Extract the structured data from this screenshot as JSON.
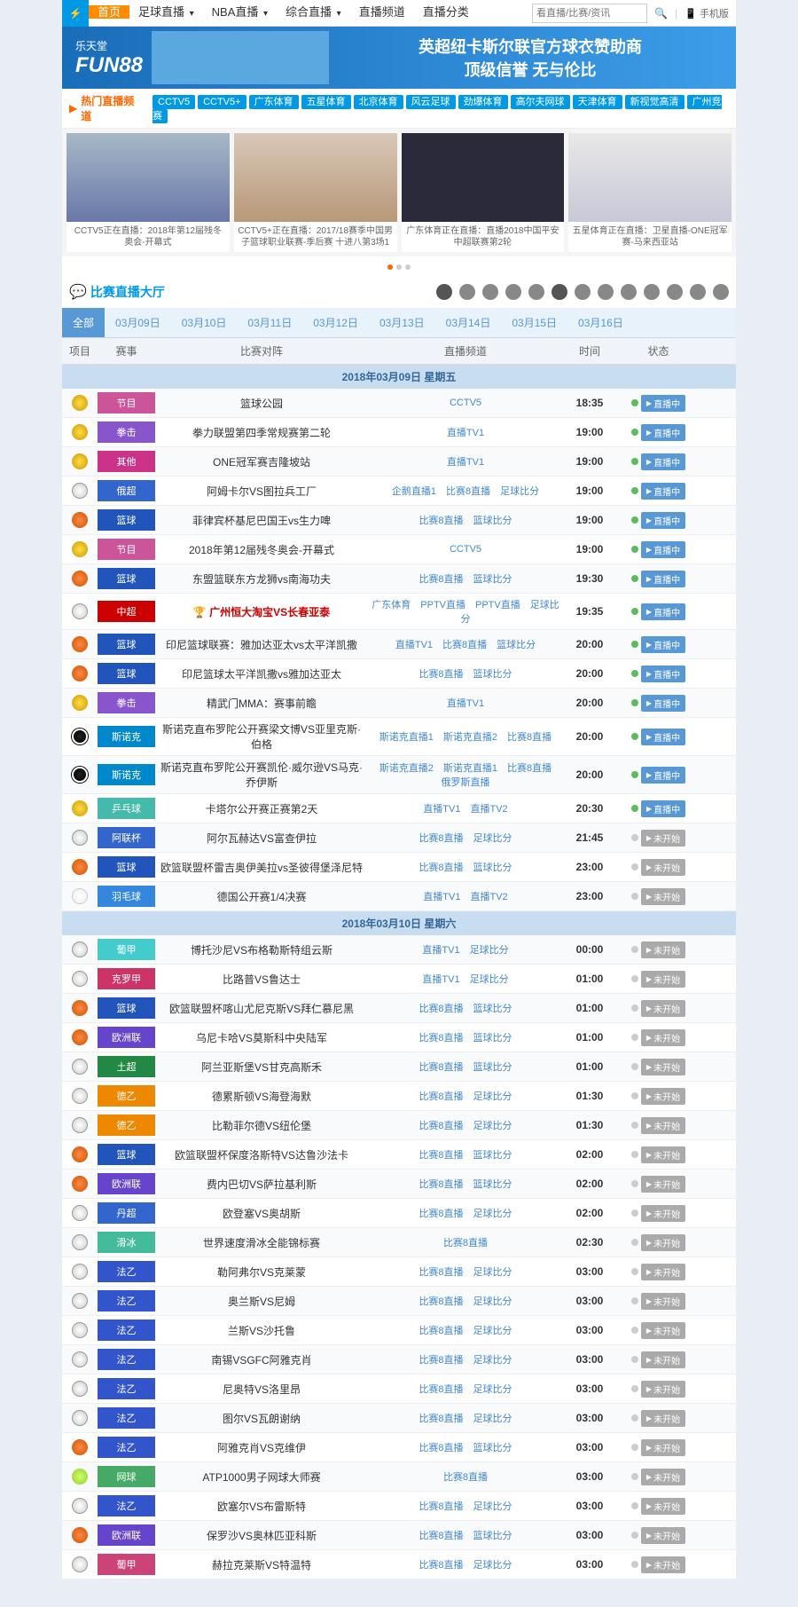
{
  "nav": {
    "items": [
      "首页",
      "足球直播",
      "NBA直播",
      "综合直播",
      "直播频道",
      "直播分类"
    ],
    "search_placeholder": "看直播/比赛/资讯",
    "mobile": "手机版"
  },
  "banner": {
    "brand_cn": "乐天堂",
    "brand": "FUN88",
    "line1": "英超纽卡斯尔联官方球衣赞助商",
    "line2": "顶级信誉 无与伦比"
  },
  "hotchan": {
    "label": "热门直播频道",
    "tags": [
      "CCTV5",
      "CCTV5+",
      "广东体育",
      "五星体育",
      "北京体育",
      "风云足球",
      "劲爆体育",
      "高尔夫网球",
      "天津体育",
      "新视觉高清",
      "广州竞赛"
    ]
  },
  "videos": [
    {
      "cap": "CCTV5正在直播：2018年第12届残冬奥会-开幕式"
    },
    {
      "cap": "CCTV5+正在直播：2017/18赛季中国男子篮球职业联赛-季后赛 十进八第3场1"
    },
    {
      "cap": "广东体育正在直播：直播2018中国平安中超联赛第2轮"
    },
    {
      "cap": "五星体育正在直播：卫星直播-ONE冠军赛-马来西亚站"
    }
  ],
  "hall": {
    "title": "比赛直播大厅"
  },
  "dates": [
    "全部",
    "03月09日",
    "03月10日",
    "03月11日",
    "03月12日",
    "03月13日",
    "03月14日",
    "03月15日",
    "03月16日"
  ],
  "thead": {
    "c1": "项目",
    "c2": "赛事",
    "c3": "比赛对阵",
    "c4": "直播频道",
    "c5": "时间",
    "c6": "状态"
  },
  "groups": [
    {
      "date": "2018年03月09日 星期五",
      "rows": [
        {
          "icon": "medal",
          "lg": "节目",
          "lgc": "#cc5599",
          "match": "篮球公园",
          "stream": "CCTV5",
          "time": "18:35",
          "live": true,
          "btn": "直播中"
        },
        {
          "icon": "medal",
          "lg": "拳击",
          "lgc": "#8855cc",
          "match": "拳力联盟第四季常规赛第二轮",
          "stream": "直播TV1",
          "time": "19:00",
          "live": true,
          "btn": "直播中"
        },
        {
          "icon": "medal",
          "lg": "其他",
          "lgc": "#cc3388",
          "match": "ONE冠军赛吉隆坡站",
          "stream": "直播TV1",
          "time": "19:00",
          "live": true,
          "btn": "直播中"
        },
        {
          "icon": "soccer",
          "lg": "俄超",
          "lgc": "#3366cc",
          "match": "阿姆卡尔VS图拉兵工厂",
          "stream": "企鹅直播1　比赛8直播　足球比分",
          "time": "19:00",
          "live": true,
          "btn": "直播中"
        },
        {
          "icon": "basket",
          "lg": "篮球",
          "lgc": "#2255bb",
          "match": "菲律宾杯基尼巴国王vs生力啤",
          "stream": "比赛8直播　篮球比分",
          "time": "19:00",
          "live": true,
          "btn": "直播中"
        },
        {
          "icon": "medal",
          "lg": "节目",
          "lgc": "#cc5599",
          "match": "2018年第12届残冬奥会-开幕式",
          "stream": "CCTV5",
          "time": "19:00",
          "live": true,
          "btn": "直播中"
        },
        {
          "icon": "basket",
          "lg": "篮球",
          "lgc": "#2255bb",
          "match": "东盟篮联东方龙狮vs南海功夫",
          "stream": "比赛8直播　篮球比分",
          "time": "19:30",
          "live": true,
          "btn": "直播中"
        },
        {
          "icon": "soccer",
          "lg": "中超",
          "lgc": "#cc0000",
          "match": "广州恒大淘宝VS长春亚泰",
          "hot": true,
          "stream": "广东体育　PPTV直播　PPTV直播　足球比分",
          "time": "19:35",
          "live": true,
          "btn": "直播中"
        },
        {
          "icon": "basket",
          "lg": "篮球",
          "lgc": "#2255bb",
          "match": "印尼篮球联赛：雅加达亚太vs太平洋凯撒",
          "stream": "直播TV1　比赛8直播　篮球比分",
          "time": "20:00",
          "live": true,
          "btn": "直播中"
        },
        {
          "icon": "basket",
          "lg": "篮球",
          "lgc": "#2255bb",
          "match": "印尼篮球太平洋凯撒vs雅加达亚太",
          "stream": "比赛8直播　篮球比分",
          "time": "20:00",
          "live": true,
          "btn": "直播中"
        },
        {
          "icon": "medal",
          "lg": "拳击",
          "lgc": "#8855cc",
          "match": "精武门MMA：赛事前瞻",
          "stream": "直播TV1",
          "time": "20:00",
          "live": true,
          "btn": "直播中"
        },
        {
          "icon": "snooker",
          "lg": "斯诺克",
          "lgc": "#0088cc",
          "match": "斯诺克直布罗陀公开赛梁文博VS亚里克斯·伯格",
          "stream": "斯诺克直播1　斯诺克直播2　比赛8直播",
          "time": "20:00",
          "live": true,
          "btn": "直播中"
        },
        {
          "icon": "snooker",
          "lg": "斯诺克",
          "lgc": "#0088cc",
          "match": "斯诺克直布罗陀公开赛凯伦·威尔逊VS马克·乔伊斯",
          "stream": "斯诺克直播2　斯诺克直播1　比赛8直播　俄罗斯直播",
          "time": "20:00",
          "live": true,
          "btn": "直播中"
        },
        {
          "icon": "medal",
          "lg": "乒乓球",
          "lgc": "#44bbaa",
          "match": "卡塔尔公开赛正赛第2天",
          "stream": "直播TV1　直播TV2",
          "time": "20:30",
          "live": true,
          "btn": "直播中"
        },
        {
          "icon": "soccer",
          "lg": "阿联杯",
          "lgc": "#3366cc",
          "match": "阿尔瓦赫达VS富查伊拉",
          "stream": "比赛8直播　足球比分",
          "time": "21:45",
          "live": false,
          "btn": "未开始"
        },
        {
          "icon": "basket",
          "lg": "篮球",
          "lgc": "#2255bb",
          "match": "欧篮联盟杯雷吉奥伊美拉vs圣彼得堡泽尼特",
          "stream": "比赛8直播　篮球比分",
          "time": "23:00",
          "live": false,
          "btn": "未开始"
        },
        {
          "icon": "badmin",
          "lg": "羽毛球",
          "lgc": "#3388dd",
          "match": "德国公开赛1/4决赛",
          "stream": "直播TV1　直播TV2",
          "time": "23:00",
          "live": false,
          "btn": "未开始"
        }
      ]
    },
    {
      "date": "2018年03月10日 星期六",
      "rows": [
        {
          "icon": "soccer",
          "lg": "葡甲",
          "lgc": "#44cccc",
          "match": "博托沙尼VS布格勒斯特组云斯",
          "stream": "直播TV1　足球比分",
          "time": "00:00",
          "live": false,
          "btn": "未开始"
        },
        {
          "icon": "soccer",
          "lg": "克罗甲",
          "lgc": "#cc3366",
          "match": "比路普VS鲁达士",
          "stream": "直播TV1　足球比分",
          "time": "01:00",
          "live": false,
          "btn": "未开始"
        },
        {
          "icon": "basket",
          "lg": "篮球",
          "lgc": "#2255bb",
          "match": "欧篮联盟杯喀山尤尼克斯VS拜仁慕尼黑",
          "stream": "比赛8直播　篮球比分",
          "time": "01:00",
          "live": false,
          "btn": "未开始"
        },
        {
          "icon": "basket",
          "lg": "欧洲联",
          "lgc": "#6644cc",
          "match": "乌尼卡哈VS莫斯科中央陆军",
          "stream": "比赛8直播　篮球比分",
          "time": "01:00",
          "live": false,
          "btn": "未开始"
        },
        {
          "icon": "soccer",
          "lg": "土超",
          "lgc": "#228844",
          "match": "阿兰亚斯堡VS甘克高斯禾",
          "stream": "比赛8直播　篮球比分",
          "time": "01:00",
          "live": false,
          "btn": "未开始"
        },
        {
          "icon": "soccer",
          "lg": "德乙",
          "lgc": "#ee8800",
          "match": "德累斯顿VS海登海默",
          "stream": "比赛8直播　足球比分",
          "time": "01:30",
          "live": false,
          "btn": "未开始"
        },
        {
          "icon": "soccer",
          "lg": "德乙",
          "lgc": "#ee8800",
          "match": "比勒菲尔德VS纽伦堡",
          "stream": "比赛8直播　足球比分",
          "time": "01:30",
          "live": false,
          "btn": "未开始"
        },
        {
          "icon": "basket",
          "lg": "篮球",
          "lgc": "#2255bb",
          "match": "欧篮联盟杯保度洛斯特VS达鲁沙法卡",
          "stream": "比赛8直播　篮球比分",
          "time": "02:00",
          "live": false,
          "btn": "未开始"
        },
        {
          "icon": "basket",
          "lg": "欧洲联",
          "lgc": "#6644cc",
          "match": "费内巴切VS萨拉基利斯",
          "stream": "比赛8直播　篮球比分",
          "time": "02:00",
          "live": false,
          "btn": "未开始"
        },
        {
          "icon": "soccer",
          "lg": "丹超",
          "lgc": "#3366cc",
          "match": "欧登塞VS奥胡斯",
          "stream": "比赛8直播　足球比分",
          "time": "02:00",
          "live": false,
          "btn": "未开始"
        },
        {
          "icon": "soccer",
          "lg": "滑冰",
          "lgc": "#44bb99",
          "match": "世界速度滑冰全能锦标赛",
          "stream": "比赛8直播",
          "time": "02:30",
          "live": false,
          "btn": "未开始"
        },
        {
          "icon": "soccer",
          "lg": "法乙",
          "lgc": "#3355cc",
          "match": "勒阿弗尔VS克莱蒙",
          "stream": "比赛8直播　足球比分",
          "time": "03:00",
          "live": false,
          "btn": "未开始"
        },
        {
          "icon": "soccer",
          "lg": "法乙",
          "lgc": "#3355cc",
          "match": "奥兰斯VS尼姆",
          "stream": "比赛8直播　足球比分",
          "time": "03:00",
          "live": false,
          "btn": "未开始"
        },
        {
          "icon": "soccer",
          "lg": "法乙",
          "lgc": "#3355cc",
          "match": "兰斯VS沙托鲁",
          "stream": "比赛8直播　足球比分",
          "time": "03:00",
          "live": false,
          "btn": "未开始"
        },
        {
          "icon": "soccer",
          "lg": "法乙",
          "lgc": "#3355cc",
          "match": "南锡VSGFC阿雅克肖",
          "stream": "比赛8直播　足球比分",
          "time": "03:00",
          "live": false,
          "btn": "未开始"
        },
        {
          "icon": "soccer",
          "lg": "法乙",
          "lgc": "#3355cc",
          "match": "尼奥特VS洛里昂",
          "stream": "比赛8直播　足球比分",
          "time": "03:00",
          "live": false,
          "btn": "未开始"
        },
        {
          "icon": "soccer",
          "lg": "法乙",
          "lgc": "#3355cc",
          "match": "图尔VS瓦朗谢纳",
          "stream": "比赛8直播　足球比分",
          "time": "03:00",
          "live": false,
          "btn": "未开始"
        },
        {
          "icon": "basket",
          "lg": "法乙",
          "lgc": "#3355cc",
          "match": "阿雅克肖VS克维伊",
          "stream": "比赛8直播　篮球比分",
          "time": "03:00",
          "live": false,
          "btn": "未开始"
        },
        {
          "icon": "tennis",
          "lg": "网球",
          "lgc": "#44aa66",
          "match": "ATP1000男子网球大师赛",
          "stream": "比赛8直播",
          "time": "03:00",
          "live": false,
          "btn": "未开始"
        },
        {
          "icon": "soccer",
          "lg": "法乙",
          "lgc": "#3355cc",
          "match": "欧塞尔VS布雷斯特",
          "stream": "比赛8直播　足球比分",
          "time": "03:00",
          "live": false,
          "btn": "未开始"
        },
        {
          "icon": "basket",
          "lg": "欧洲联",
          "lgc": "#6644cc",
          "match": "保罗沙VS奥林匹亚科斯",
          "stream": "比赛8直播　篮球比分",
          "time": "03:00",
          "live": false,
          "btn": "未开始"
        },
        {
          "icon": "soccer",
          "lg": "葡甲",
          "lgc": "#cc4477",
          "match": "赫拉克莱斯VS特温特",
          "stream": "比赛8直播　足球比分",
          "time": "03:00",
          "live": false,
          "btn": "未开始"
        }
      ]
    }
  ]
}
